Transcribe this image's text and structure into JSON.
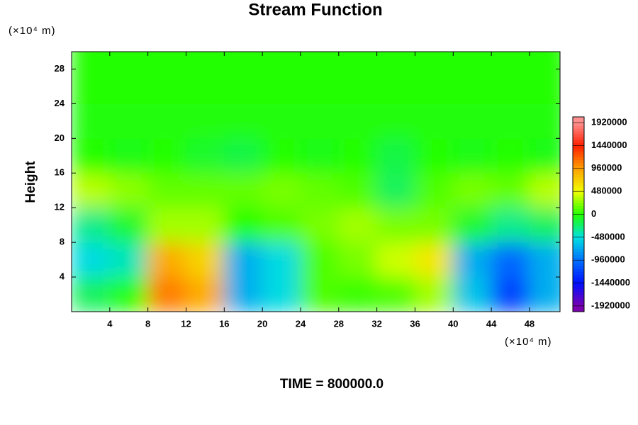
{
  "chart_data": {
    "type": "contour",
    "title": "Stream Function",
    "y_unit": "(×10⁴ m)",
    "x_unit": "(×10⁴ m)",
    "y_label": "Height",
    "annotation": "TIME = 800000.0",
    "x": [
      2,
      6,
      10,
      14,
      18,
      22,
      26,
      30,
      34,
      38,
      42,
      46,
      50
    ],
    "y": [
      2,
      6,
      10,
      14,
      18,
      22,
      26,
      30
    ],
    "z": [
      [
        -200000,
        0,
        1100000,
        900000,
        -700000,
        -500000,
        100000,
        50000,
        100000,
        300000,
        -600000,
        -1200000,
        -700000
      ],
      [
        -500000,
        -400000,
        900000,
        700000,
        -700000,
        -500000,
        100000,
        200000,
        400000,
        600000,
        -700000,
        -1000000,
        -700000
      ],
      [
        -300000,
        -100000,
        300000,
        300000,
        0,
        100000,
        200000,
        300000,
        200000,
        200000,
        -100000,
        -300000,
        -200000
      ],
      [
        350000,
        250000,
        150000,
        150000,
        150000,
        200000,
        150000,
        100000,
        -200000,
        100000,
        200000,
        150000,
        350000
      ],
      [
        0,
        -50000,
        0,
        -100000,
        -150000,
        0,
        -50000,
        0,
        -150000,
        0,
        -50000,
        0,
        -50000
      ],
      [
        -30000,
        -30000,
        -30000,
        -30000,
        -30000,
        -30000,
        -30000,
        -30000,
        -30000,
        -30000,
        -30000,
        -30000,
        -30000
      ],
      [
        0,
        0,
        0,
        0,
        0,
        0,
        0,
        0,
        0,
        0,
        0,
        0,
        0
      ],
      [
        0,
        0,
        0,
        0,
        0,
        0,
        0,
        0,
        0,
        0,
        0,
        0,
        0
      ]
    ],
    "xlim": [
      0,
      51.2
    ],
    "ylim": [
      0,
      30
    ],
    "xticks": [
      4,
      8,
      12,
      16,
      20,
      24,
      28,
      32,
      36,
      40,
      44,
      48
    ],
    "yticks": [
      4,
      8,
      12,
      16,
      20,
      24,
      28
    ],
    "clim": [
      -2040000,
      2040000
    ],
    "cticks": [
      -1920000,
      -1440000,
      -960000,
      -480000,
      0,
      480000,
      960000,
      1440000,
      1920000
    ],
    "colormap": [
      "#7a00b0",
      "#0010ff",
      "#0070ff",
      "#00e0e0",
      "#22ff00",
      "#f0ff00",
      "#ffa000",
      "#ff2000",
      "#ff9090"
    ]
  }
}
